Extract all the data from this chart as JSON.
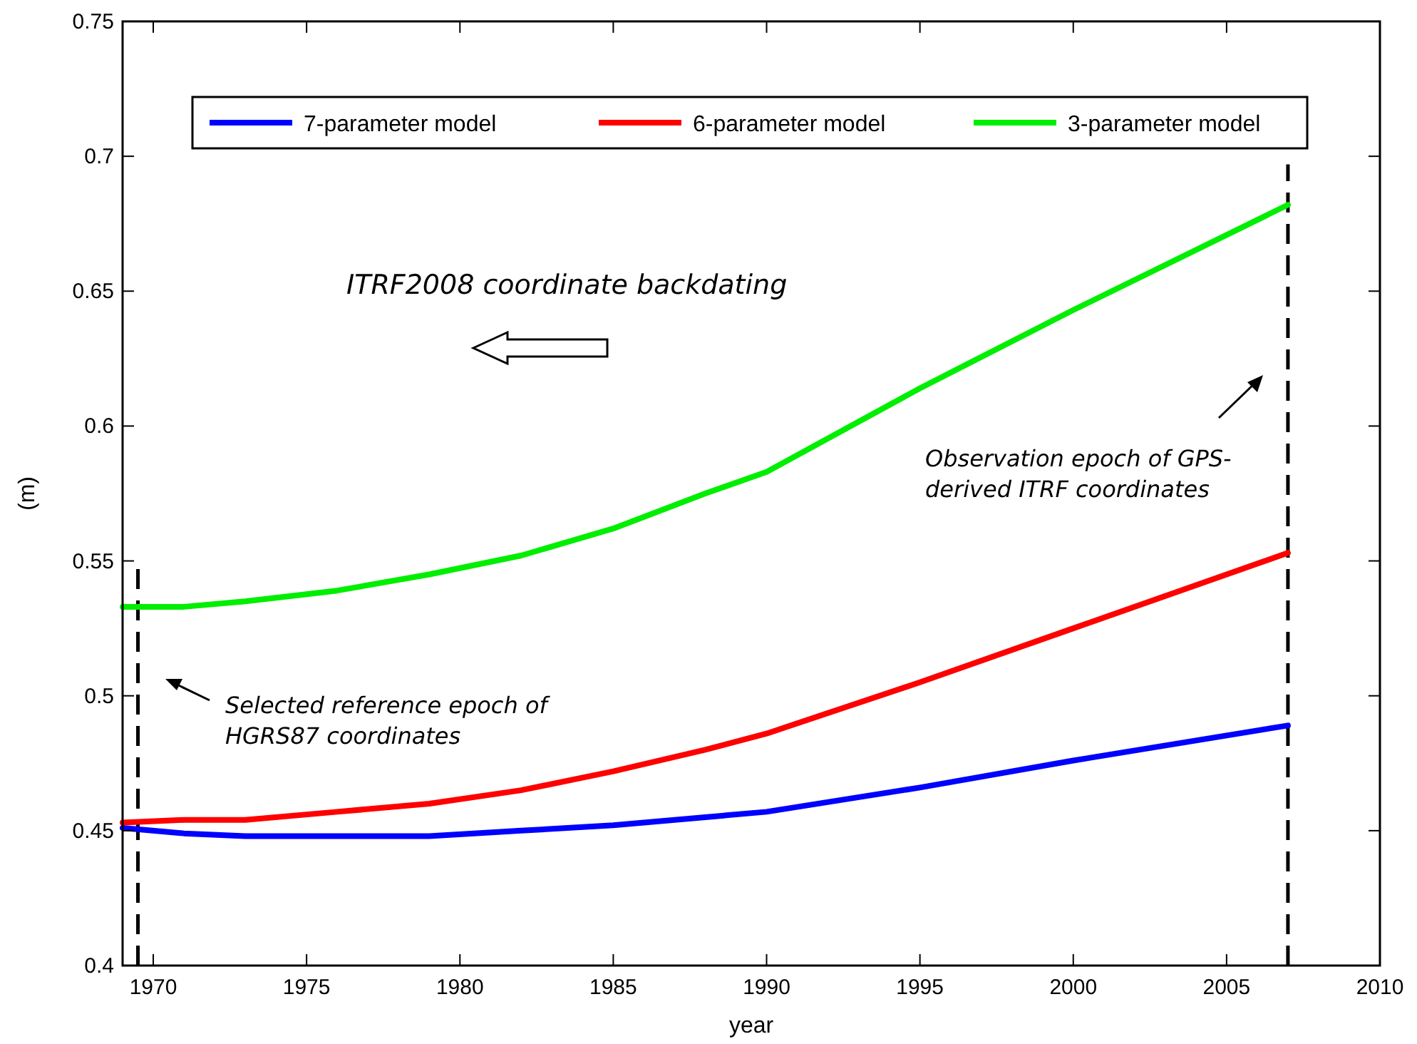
{
  "chart_data": {
    "type": "line",
    "xlabel": "year",
    "ylabel": "(m)",
    "xlim": [
      1969,
      2010
    ],
    "xticks": [
      1970,
      1975,
      1980,
      1985,
      1990,
      1995,
      2000,
      2005,
      2010
    ],
    "ylim": [
      0.4,
      0.75
    ],
    "yticks": [
      0.4,
      0.45,
      0.5,
      0.55,
      0.6,
      0.65,
      0.7,
      0.75
    ],
    "x": [
      1969,
      1971,
      1973,
      1976,
      1979,
      1982,
      1985,
      1988,
      1990,
      1995,
      2000,
      2007
    ],
    "series": [
      {
        "name": "7-parameter model",
        "color": "#0000ff",
        "values": [
          0.451,
          0.449,
          0.448,
          0.448,
          0.448,
          0.45,
          0.452,
          0.455,
          0.457,
          0.466,
          0.476,
          0.489
        ]
      },
      {
        "name": "6-parameter model",
        "color": "#ff0000",
        "values": [
          0.453,
          0.454,
          0.454,
          0.457,
          0.46,
          0.465,
          0.472,
          0.48,
          0.486,
          0.505,
          0.525,
          0.553
        ]
      },
      {
        "name": "3-parameter model",
        "color": "#00ee00",
        "values": [
          0.533,
          0.533,
          0.535,
          0.539,
          0.545,
          0.552,
          0.562,
          0.575,
          0.583,
          0.614,
          0.643,
          0.682
        ]
      }
    ],
    "ref_lines": [
      {
        "axis": "x",
        "value": 1969.5,
        "color": "#000000",
        "line_style": "dashed"
      },
      {
        "axis": "x",
        "value": 2007,
        "color": "#000000",
        "line_style": "dashed"
      }
    ],
    "annotations": [
      "ITRF2008 coordinate backdating",
      "Selected reference epoch of\nHGRS87 coordinates",
      "Observation epoch of GPS-\nderived ITRF coordinates"
    ],
    "legend": "top",
    "grid": false,
    "marker": "none",
    "line_style": "solid"
  }
}
